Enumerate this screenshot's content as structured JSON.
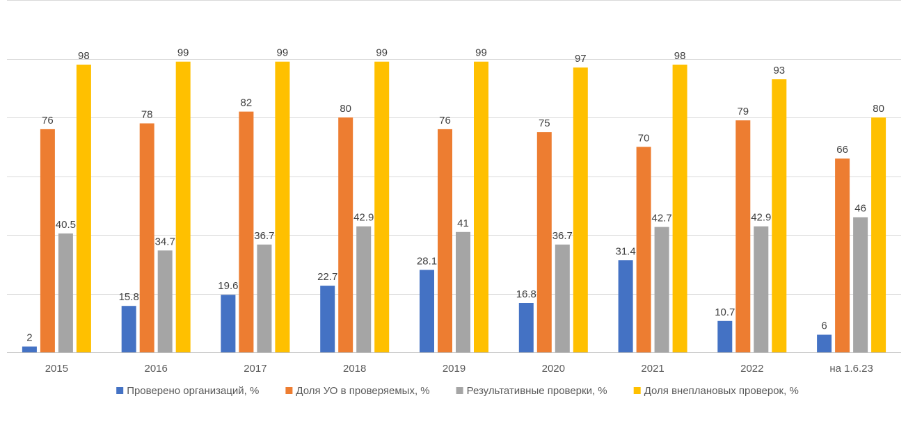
{
  "chart_data": {
    "type": "bar",
    "categories": [
      "2015",
      "2016",
      "2017",
      "2018",
      "2019",
      "2020",
      "2021",
      "2022",
      "на 1.6.23"
    ],
    "series": [
      {
        "name": "Проверено организаций, %",
        "color": "#4472C4",
        "values": [
          2,
          15.8,
          19.6,
          22.7,
          28.1,
          16.8,
          31.4,
          10.7,
          6
        ]
      },
      {
        "name": "Доля УО в проверяемых, %",
        "color": "#ED7D31",
        "values": [
          76,
          78,
          82,
          80,
          76,
          75,
          70,
          79,
          66
        ]
      },
      {
        "name": "Результативные проверки, %",
        "color": "#A5A5A5",
        "values": [
          40.5,
          34.7,
          36.7,
          42.9,
          41,
          36.7,
          42.7,
          42.9,
          46
        ]
      },
      {
        "name": "Доля внеплановых проверок, %",
        "color": "#FFC000",
        "values": [
          98,
          99,
          99,
          99,
          99,
          97,
          98,
          93,
          80
        ]
      }
    ],
    "ylim": [
      0,
      120
    ],
    "grid": true,
    "legend": "bottom",
    "title": "",
    "xlabel": "",
    "ylabel": ""
  }
}
